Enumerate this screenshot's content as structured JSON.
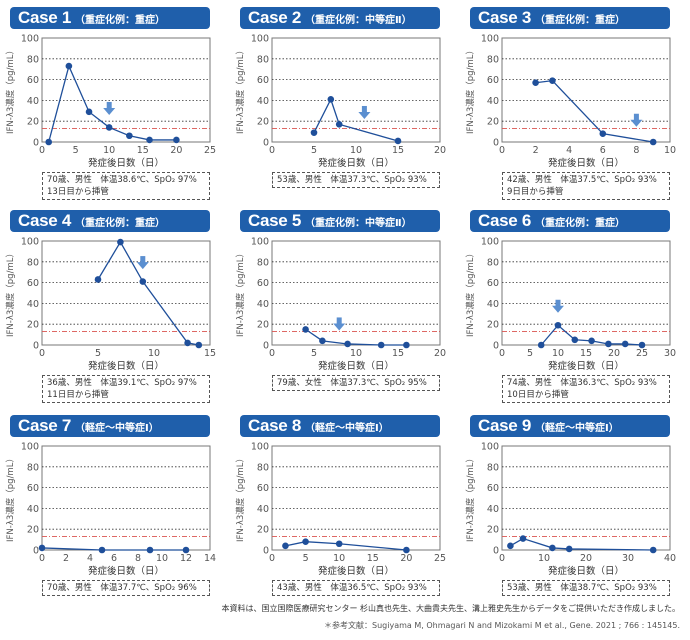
{
  "footer": {
    "note": "本資料は、国立国際医療研究センター 杉山真也先生、大曲貴夫先生、溝上雅史先生からデータをご提供いただき作成しました。",
    "reference": "＊参考文献：Sugiyama M, Ohmagari N and Mizokami M et al., Gene. 2021 ; 766 : 145145."
  },
  "colors": {
    "header": "#1f5fab",
    "line": "#1f4f9a",
    "threshold": "#d9534f",
    "arrow": "#5b8fd0"
  },
  "chart_data": [
    {
      "type": "line",
      "title": "Case 1",
      "subtitle": "（重症化例：重症）",
      "xlabel": "発症後日数（日）",
      "ylabel": "IFN-λ3濃度（pg/mL）",
      "xlim": [
        0,
        25
      ],
      "xticks": [
        0,
        5,
        10,
        15,
        20,
        25
      ],
      "ylim": [
        0,
        100
      ],
      "yticks": [
        0,
        20,
        40,
        60,
        80,
        100
      ],
      "threshold": 13,
      "intubation_arrow_day": 10,
      "series": [
        {
          "name": "Case 1",
          "x": [
            1,
            4,
            7,
            10,
            13,
            16,
            20
          ],
          "y": [
            0,
            73,
            29,
            14,
            6,
            2,
            2
          ]
        }
      ],
      "info": [
        "70歳、男性　体温38.6℃、SpO₂ 97%",
        "13日目から挿管"
      ]
    },
    {
      "type": "line",
      "title": "Case 2",
      "subtitle": "（重症化例：中等症Ⅱ）",
      "xlabel": "発症後日数（日）",
      "ylabel": "IFN-λ3濃度（pg/mL）",
      "xlim": [
        0,
        20
      ],
      "xticks": [
        0,
        5,
        10,
        15,
        20
      ],
      "ylim": [
        0,
        100
      ],
      "yticks": [
        0,
        20,
        40,
        60,
        80,
        100
      ],
      "threshold": 13,
      "intubation_arrow_day": 11,
      "series": [
        {
          "name": "Case 2",
          "x": [
            5,
            7,
            8,
            15
          ],
          "y": [
            9,
            41,
            17,
            1
          ]
        }
      ],
      "info": [
        "53歳、男性　体温37.3℃、SpO₂ 93%"
      ]
    },
    {
      "type": "line",
      "title": "Case 3",
      "subtitle": "（重症化例：重症）",
      "xlabel": "発症後日数（日）",
      "ylabel": "IFN-λ3濃度（pg/mL）",
      "xlim": [
        0,
        10
      ],
      "xticks": [
        0,
        2,
        4,
        6,
        8,
        10
      ],
      "ylim": [
        0,
        100
      ],
      "yticks": [
        0,
        20,
        40,
        60,
        80,
        100
      ],
      "threshold": 13,
      "intubation_arrow_day": 8,
      "series": [
        {
          "name": "Case 3",
          "x": [
            2,
            3,
            6,
            9
          ],
          "y": [
            57,
            59,
            8,
            0
          ]
        }
      ],
      "info": [
        "42歳、男性　体温37.5℃、SpO₂ 93%",
        "9日目から挿管"
      ]
    },
    {
      "type": "line",
      "title": "Case 4",
      "subtitle": "（重症化例：重症）",
      "xlabel": "発症後日数（日）",
      "ylabel": "IFN-λ3濃度（pg/mL）",
      "xlim": [
        0,
        15
      ],
      "xticks": [
        0,
        5,
        10,
        15
      ],
      "ylim": [
        0,
        100
      ],
      "yticks": [
        0,
        20,
        40,
        60,
        80,
        100
      ],
      "threshold": 13,
      "intubation_arrow_day": 9,
      "series": [
        {
          "name": "Case 4",
          "x": [
            5,
            7,
            9,
            13,
            14
          ],
          "y": [
            63,
            99,
            61,
            2,
            0
          ]
        }
      ],
      "info": [
        "36歳、男性　体温39.1℃、SpO₂ 97%",
        "11日目から挿管"
      ]
    },
    {
      "type": "line",
      "title": "Case 5",
      "subtitle": "（重症化例：中等症Ⅱ）",
      "xlabel": "発症後日数（日）",
      "ylabel": "IFN-λ3濃度（pg/mL）",
      "xlim": [
        0,
        20
      ],
      "xticks": [
        0,
        5,
        10,
        15,
        20
      ],
      "ylim": [
        0,
        100
      ],
      "yticks": [
        0,
        20,
        40,
        60,
        80,
        100
      ],
      "threshold": 13,
      "intubation_arrow_day": 8,
      "series": [
        {
          "name": "Case 5",
          "x": [
            4,
            6,
            9,
            13,
            16
          ],
          "y": [
            15,
            4,
            1,
            0,
            0
          ]
        }
      ],
      "info": [
        "79歳、女性　体温37.3℃、SpO₂ 95%"
      ]
    },
    {
      "type": "line",
      "title": "Case 6",
      "subtitle": "（重症化例：重症）",
      "xlabel": "発症後日数（日）",
      "ylabel": "IFN-λ3濃度（pg/mL）",
      "xlim": [
        0,
        30
      ],
      "xticks": [
        0,
        5,
        10,
        15,
        20,
        25,
        30
      ],
      "ylim": [
        0,
        100
      ],
      "yticks": [
        0,
        20,
        40,
        60,
        80,
        100
      ],
      "threshold": 13,
      "intubation_arrow_day": 10,
      "series": [
        {
          "name": "Case 6",
          "x": [
            7,
            10,
            13,
            16,
            19,
            22,
            25
          ],
          "y": [
            0,
            19,
            5,
            4,
            1,
            1,
            0
          ]
        }
      ],
      "info": [
        "74歳、男性　体温36.3℃、SpO₂ 93%",
        "10日目から挿管"
      ]
    },
    {
      "type": "line",
      "title": "Case 7",
      "subtitle": "（軽症〜中等症Ⅰ）",
      "xlabel": "発症後日数（日）",
      "ylabel": "IFN-λ3濃度（pg/mL）",
      "xlim": [
        0,
        14
      ],
      "xticks": [
        0,
        2,
        4,
        6,
        8,
        10,
        12,
        14
      ],
      "ylim": [
        0,
        100
      ],
      "yticks": [
        0,
        20,
        40,
        60,
        80,
        100
      ],
      "threshold": 13,
      "intubation_arrow_day": null,
      "series": [
        {
          "name": "Case 7",
          "x": [
            0,
            5,
            9,
            12
          ],
          "y": [
            2,
            0,
            0,
            0
          ]
        }
      ],
      "info": [
        "70歳、男性　体温37.7℃、SpO₂ 96%"
      ]
    },
    {
      "type": "line",
      "title": "Case 8",
      "subtitle": "（軽症〜中等症Ⅰ）",
      "xlabel": "発症後日数（日）",
      "ylabel": "IFN-λ3濃度（pg/mL）",
      "xlim": [
        0,
        25
      ],
      "xticks": [
        0,
        5,
        10,
        15,
        20,
        25
      ],
      "ylim": [
        0,
        100
      ],
      "yticks": [
        0,
        20,
        40,
        60,
        80,
        100
      ],
      "threshold": 13,
      "intubation_arrow_day": null,
      "series": [
        {
          "name": "Case 8",
          "x": [
            2,
            5,
            10,
            20
          ],
          "y": [
            4,
            8,
            6,
            0
          ]
        }
      ],
      "info": [
        "43歳、男性　体温36.5℃、SpO₂ 93%"
      ]
    },
    {
      "type": "line",
      "title": "Case 9",
      "subtitle": "（軽症〜中等症Ⅰ）",
      "xlabel": "発症後日数（日）",
      "ylabel": "IFN-λ3濃度（pg/mL）",
      "xlim": [
        0,
        40
      ],
      "xticks": [
        0,
        10,
        20,
        30,
        40
      ],
      "ylim": [
        0,
        100
      ],
      "yticks": [
        0,
        20,
        40,
        60,
        80,
        100
      ],
      "threshold": 13,
      "intubation_arrow_day": null,
      "series": [
        {
          "name": "Case 9",
          "x": [
            2,
            5,
            12,
            16,
            36
          ],
          "y": [
            4,
            11,
            2,
            1,
            0
          ]
        }
      ],
      "info": [
        "53歳、男性　体温38.7℃、SpO₂ 93%"
      ]
    }
  ]
}
